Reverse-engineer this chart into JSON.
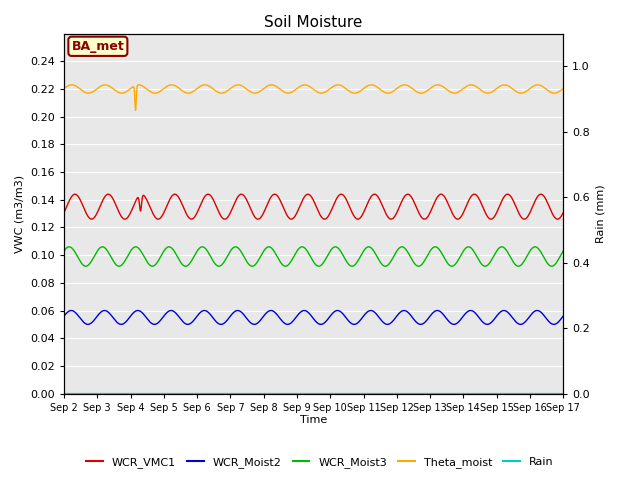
{
  "title": "Soil Moisture",
  "xlabel": "Time",
  "ylabel_left": "VWC (m3/m3)",
  "ylabel_right": "Rain (mm)",
  "ylim_left": [
    0.0,
    0.26
  ],
  "ylim_right": [
    0.0,
    1.1
  ],
  "bg_color": "#e8e8e8",
  "annotation_text": "BA_met",
  "annotation_bg": "#ffffcc",
  "annotation_border": "#8b0000",
  "x_tick_labels": [
    "Sep 2",
    "Sep 3",
    "Sep 4",
    "Sep 5",
    "Sep 6",
    "Sep 7",
    "Sep 8",
    "Sep 9",
    "Sep 10",
    "Sep 11",
    "Sep 12",
    "Sep 13",
    "Sep 14",
    "Sep 15",
    "Sep 16",
    "Sep 17"
  ],
  "series_colors": {
    "WCR_VMC1": "#dd0000",
    "WCR_Moist2": "#0000dd",
    "WCR_Moist3": "#00bb00",
    "Theta_moist": "#ffaa00",
    "Rain": "#00cccc"
  },
  "legend": [
    {
      "label": "WCR_VMC1",
      "color": "#dd0000"
    },
    {
      "label": "WCR_Moist2",
      "color": "#0000dd"
    },
    {
      "label": "WCR_Moist3",
      "color": "#00bb00"
    },
    {
      "label": "Theta_moist",
      "color": "#ffaa00"
    },
    {
      "label": "Rain",
      "color": "#00cccc"
    }
  ],
  "yticks_left": [
    0.0,
    0.02,
    0.04,
    0.06,
    0.08,
    0.1,
    0.12,
    0.14,
    0.16,
    0.18,
    0.2,
    0.22,
    0.24
  ],
  "yticks_right": [
    0.0,
    0.2,
    0.4,
    0.6,
    0.8,
    1.0
  ]
}
